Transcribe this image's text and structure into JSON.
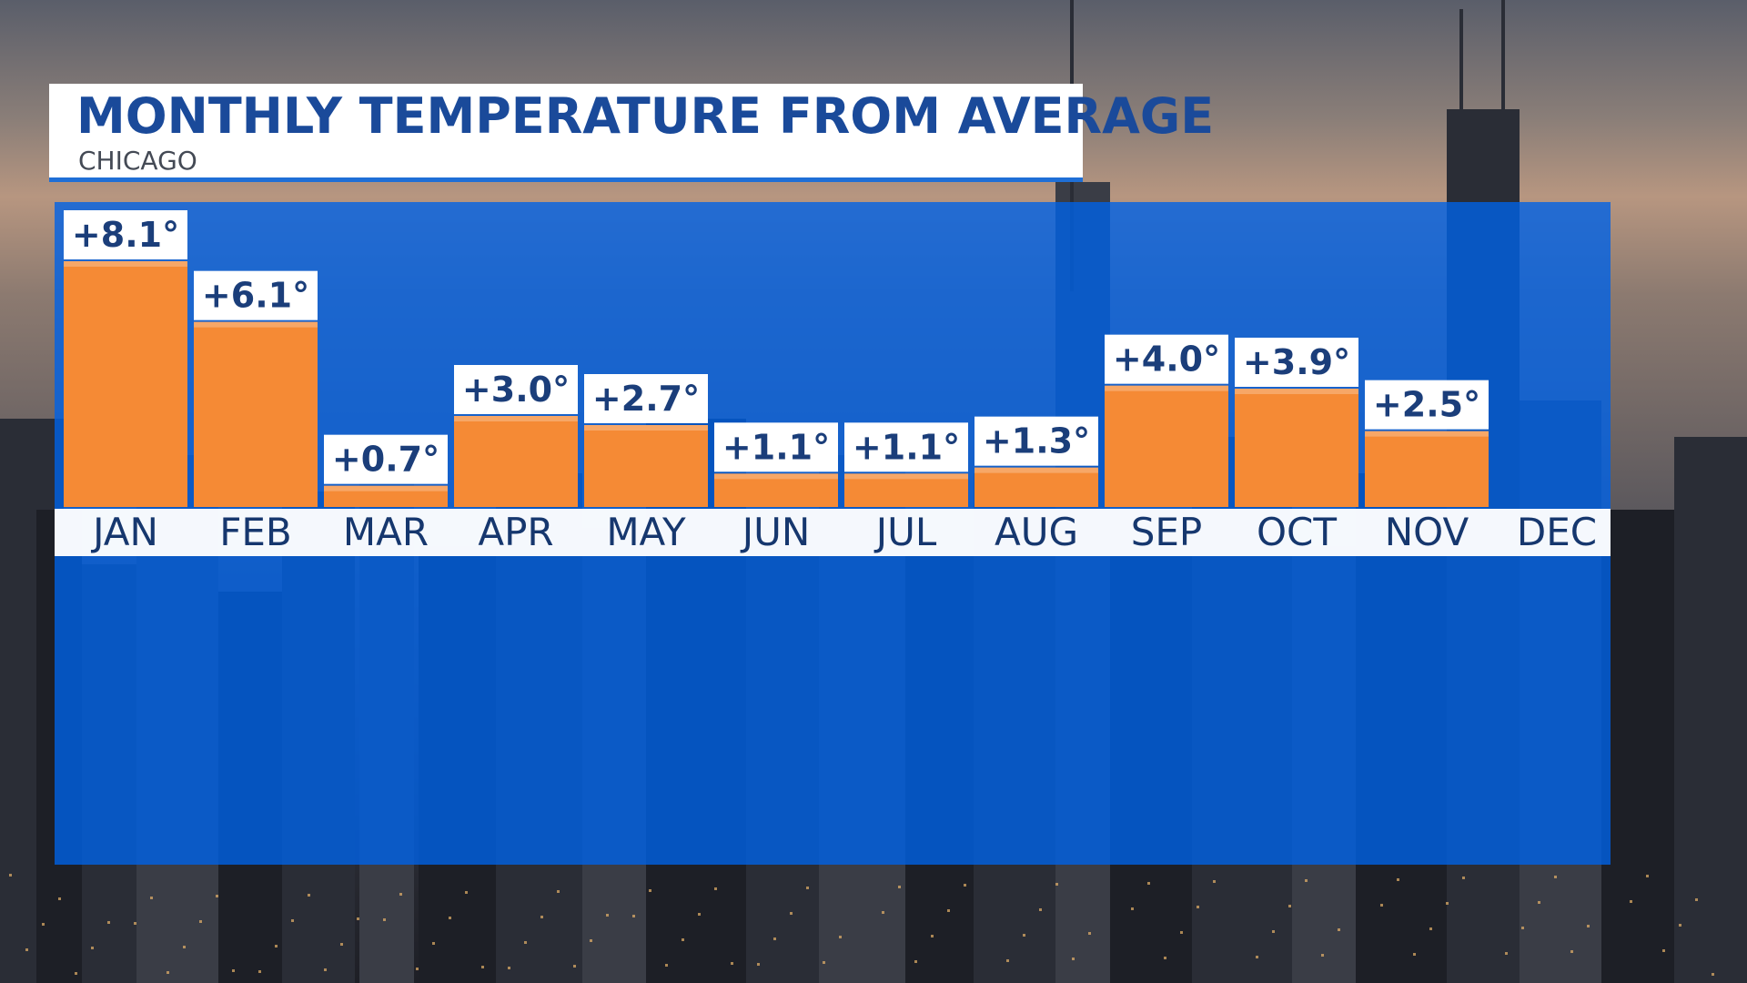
{
  "header": {
    "title": "MONTHLY TEMPERATURE FROM AVERAGE",
    "subtitle": "CHICAGO"
  },
  "colors": {
    "panel": "#0a64e0",
    "bar": "#f58a35",
    "label_bg": "#ffffff",
    "label_text": "#1b3e7a",
    "title_text": "#1a4a9a"
  },
  "chart_data": {
    "type": "bar",
    "title": "MONTHLY TEMPERATURE FROM AVERAGE",
    "subtitle": "CHICAGO",
    "xlabel": "",
    "ylabel": "",
    "categories": [
      "JAN",
      "FEB",
      "MAR",
      "APR",
      "MAY",
      "JUN",
      "JUL",
      "AUG",
      "SEP",
      "OCT",
      "NOV",
      "DEC"
    ],
    "values": [
      8.1,
      6.1,
      0.7,
      3.0,
      2.7,
      1.1,
      1.1,
      1.3,
      4.0,
      3.9,
      2.5,
      null
    ],
    "value_labels": [
      "+8.1°",
      "+6.1°",
      "+0.7°",
      "+3.0°",
      "+2.7°",
      "+1.1°",
      "+1.1°",
      "+1.3°",
      "+4.0°",
      "+3.9°",
      "+2.5°",
      ""
    ],
    "ylim": [
      0,
      8.1
    ],
    "grid": false,
    "legend": "none"
  }
}
